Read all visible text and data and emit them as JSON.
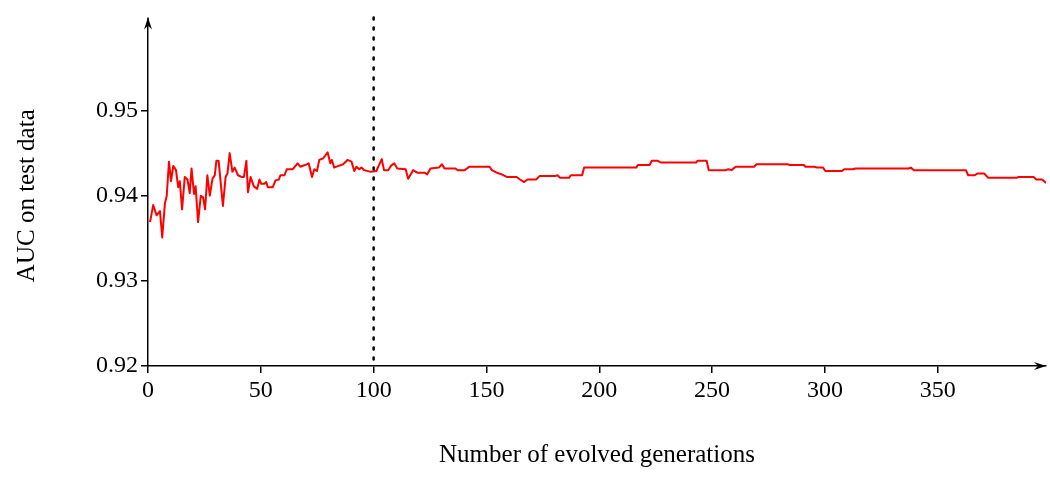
{
  "chart_data": {
    "type": "line",
    "xlabel": "Number of evolved generations",
    "ylabel": "AUC on test data",
    "xlim": [
      0,
      398
    ],
    "ylim": [
      0.92,
      0.96
    ],
    "xticks": [
      0,
      50,
      100,
      150,
      200,
      250,
      300,
      350
    ],
    "yticks": [
      0.92,
      0.93,
      0.94,
      0.95
    ],
    "marker": "none",
    "line_style": "solid",
    "ref_lines": [
      {
        "axis": "x",
        "value": 100,
        "color": "#000000",
        "line_style": "dotted"
      }
    ],
    "series": [
      {
        "color": "#ff0000",
        "x": [
          0.9,
          2.3,
          3.8,
          5.3,
          6.3,
          7.5,
          8.3,
          9.3,
          10.2,
          11.2,
          12.4,
          13.4,
          14.1,
          15.1,
          16.3,
          17.5,
          18.5,
          19.3,
          20.4,
          21.1,
          22.2,
          23.4,
          24.4,
          25.3,
          26.3,
          27.4,
          28.6,
          29.6,
          30.3,
          31.3,
          33.2,
          34.4,
          35.2,
          36.2,
          37.4,
          38.4,
          39.9,
          41.4,
          42.5,
          43.6,
          44.3,
          45.5,
          46.9,
          48.4,
          49.4,
          50.2,
          51.6,
          52.4,
          53.1,
          55.3,
          56.5,
          58,
          58.7,
          60.5,
          61.5,
          64.1,
          66.3,
          67.5,
          69.6,
          71.2,
          72.7,
          73.7,
          74.9,
          75.9,
          77.7,
          79.6,
          80.8,
          81.5,
          82.5,
          84.4,
          86.5,
          88.4,
          90.2,
          91.4,
          92.4,
          93.6,
          94.6,
          95.8,
          98.7,
          101.2,
          103.6,
          104.6,
          106.5,
          107.6,
          109.1,
          110.5,
          114.2,
          115.3,
          117.5,
          119.3,
          122.6,
          123.7,
          125.2,
          128.9,
          130.3,
          131.4,
          136.2,
          137.3,
          140.4,
          142.4,
          145.8,
          151.4,
          152.4,
          154.6,
          156.8,
          159,
          163.4,
          164.9,
          166.7,
          168.2,
          172,
          173.5,
          180.4,
          181.5,
          182.6,
          186.6,
          187.4,
          192.4,
          193.3,
          216.4,
          217.1,
          222.3,
          223.3,
          226,
          227.2,
          242.9,
          243.6,
          247.6,
          248.5,
          256.1,
          257.2,
          258.6,
          260.5,
          268.6,
          269.7,
          283.4,
          284.6,
          288.9,
          290.7,
          291.4,
          295.4,
          296.6,
          299.2,
          300.2,
          307.6,
          308.6,
          312.5,
          313.5,
          337.1,
          338.1,
          339.5,
          362.5,
          363.5,
          366.4,
          367.5,
          370.6,
          372.4,
          384.9,
          385.9,
          392.5,
          393.7,
          396.3,
          398
        ],
        "values": [
          0.9369,
          0.9389,
          0.9377,
          0.9382,
          0.9351,
          0.9391,
          0.94,
          0.944,
          0.9417,
          0.9435,
          0.943,
          0.941,
          0.9417,
          0.9384,
          0.9422,
          0.9419,
          0.9403,
          0.9432,
          0.9402,
          0.9411,
          0.9369,
          0.94,
          0.9398,
          0.9384,
          0.9424,
          0.94,
          0.942,
          0.9424,
          0.9441,
          0.9441,
          0.9388,
          0.9422,
          0.9426,
          0.945,
          0.9428,
          0.9433,
          0.9424,
          0.9422,
          0.9422,
          0.9441,
          0.9404,
          0.9422,
          0.9411,
          0.9408,
          0.9419,
          0.9414,
          0.9414,
          0.9416,
          0.941,
          0.941,
          0.9418,
          0.9419,
          0.9424,
          0.9424,
          0.9431,
          0.9431,
          0.9438,
          0.9434,
          0.9436,
          0.9438,
          0.9422,
          0.9431,
          0.9429,
          0.9442,
          0.9444,
          0.9451,
          0.9438,
          0.9442,
          0.9433,
          0.9435,
          0.9437,
          0.9442,
          0.944,
          0.9429,
          0.9434,
          0.9431,
          0.9433,
          0.943,
          0.9428,
          0.9429,
          0.9443,
          0.943,
          0.943,
          0.9435,
          0.9438,
          0.9432,
          0.9431,
          0.942,
          0.943,
          0.9427,
          0.9427,
          0.9425,
          0.9432,
          0.9433,
          0.9437,
          0.9432,
          0.9432,
          0.943,
          0.943,
          0.9434,
          0.9434,
          0.9434,
          0.943,
          0.9427,
          0.9425,
          0.9422,
          0.9422,
          0.9419,
          0.9416,
          0.9419,
          0.9419,
          0.9423,
          0.9423,
          0.9424,
          0.9421,
          0.9421,
          0.9424,
          0.9424,
          0.9433,
          0.9433,
          0.9436,
          0.9436,
          0.9441,
          0.9441,
          0.9439,
          0.9439,
          0.9441,
          0.9441,
          0.943,
          0.943,
          0.9431,
          0.943,
          0.9434,
          0.9434,
          0.9437,
          0.9437,
          0.9436,
          0.9436,
          0.9436,
          0.9434,
          0.9434,
          0.9433,
          0.9433,
          0.9429,
          0.9429,
          0.9431,
          0.9431,
          0.9432,
          0.9432,
          0.9433,
          0.943,
          0.943,
          0.9424,
          0.9424,
          0.9426,
          0.9426,
          0.9421,
          0.9421,
          0.9422,
          0.9422,
          0.9419,
          0.9419,
          0.9415
        ]
      }
    ]
  }
}
